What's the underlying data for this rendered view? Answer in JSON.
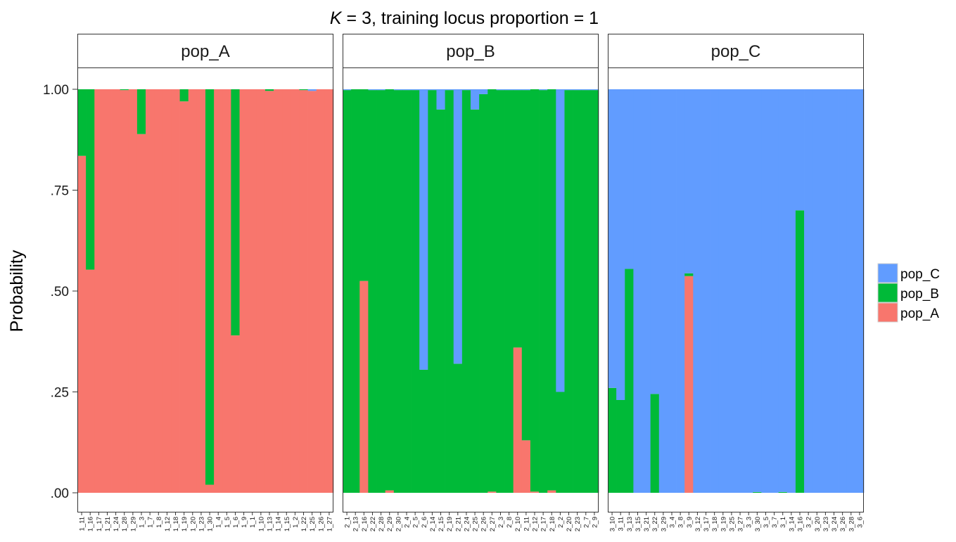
{
  "chart_data": {
    "type": "bar",
    "stacked": true,
    "title_k": "K",
    "title_rest": " = 3, training locus proportion = 1",
    "ylabel": "Probability",
    "xlabel": "",
    "ylim": [
      0,
      1
    ],
    "y_ticks": [
      0,
      0.25,
      0.5,
      0.75,
      1
    ],
    "y_tick_labels": [
      ".00",
      ".25",
      ".50",
      ".75",
      "1.00"
    ],
    "grid": false,
    "legend_position": "right",
    "legend": [
      {
        "label": "pop_C",
        "color": "#619CFF"
      },
      {
        "label": "pop_B",
        "color": "#00BA38"
      },
      {
        "label": "pop_A",
        "color": "#F8766D"
      }
    ],
    "stack_order": [
      "pop_A",
      "pop_B",
      "pop_C"
    ],
    "facets": [
      {
        "label": "pop_A",
        "samples": [
          "1_11",
          "1_16",
          "1_17",
          "1_21",
          "1_24",
          "1_28",
          "1_29",
          "1_3",
          "1_7",
          "1_8",
          "1_12",
          "1_18",
          "1_19",
          "1_20",
          "1_23",
          "1_30",
          "1_4",
          "1_5",
          "1_6",
          "1_9",
          "1_1",
          "1_10",
          "1_13",
          "1_14",
          "1_15",
          "1_2",
          "1_22",
          "1_25",
          "1_26",
          "1_27"
        ],
        "series": [
          {
            "name": "pop_A",
            "values": [
              0.835,
              0.553,
              1.0,
              1.0,
              1.0,
              0.998,
              1.0,
              0.889,
              1.0,
              1.0,
              1.0,
              1.0,
              0.97,
              1.0,
              1.0,
              0.02,
              1.0,
              1.0,
              0.39,
              1.0,
              1.0,
              1.0,
              0.996,
              1.0,
              1.0,
              1.0,
              0.998,
              0.996,
              1.0,
              1.0
            ]
          },
          {
            "name": "pop_B",
            "values": [
              0.165,
              0.447,
              0.0,
              0.0,
              0.0,
              0.002,
              0.0,
              0.111,
              0.0,
              0.0,
              0.0,
              0.0,
              0.03,
              0.0,
              0.0,
              0.98,
              0.0,
              0.0,
              0.61,
              0.0,
              0.0,
              0.0,
              0.004,
              0.0,
              0.0,
              0.0,
              0.002,
              0.0,
              0.0,
              0.0
            ]
          },
          {
            "name": "pop_C",
            "values": [
              0,
              0,
              0,
              0,
              0,
              0,
              0,
              0,
              0,
              0,
              0,
              0,
              0,
              0,
              0,
              0,
              0,
              0,
              0,
              0,
              0,
              0,
              0,
              0,
              0,
              0,
              0,
              0.004,
              0,
              0
            ]
          }
        ]
      },
      {
        "label": "pop_B",
        "samples": [
          "2_1",
          "2_13",
          "2_16",
          "2_22",
          "2_28",
          "2_29",
          "2_30",
          "2_4",
          "2_5",
          "2_6",
          "2_14",
          "2_15",
          "2_19",
          "2_21",
          "2_24",
          "2_25",
          "2_26",
          "2_27",
          "2_3",
          "2_8",
          "2_10",
          "2_11",
          "2_12",
          "2_17",
          "2_18",
          "2_2",
          "2_20",
          "2_23",
          "2_7",
          "2_9"
        ],
        "series": [
          {
            "name": "pop_A",
            "values": [
              0,
              0,
              0.525,
              0,
              0,
              0.006,
              0,
              0,
              0,
              0,
              0,
              0,
              0,
              0,
              0,
              0,
              0,
              0.003,
              0,
              0,
              0.36,
              0.13,
              0.003,
              0,
              0.006,
              0,
              0,
              0,
              0,
              0
            ]
          },
          {
            "name": "pop_B",
            "values": [
              0.998,
              1.0,
              0.475,
              0.998,
              0.998,
              0.994,
              0.998,
              0.998,
              0.998,
              0.305,
              0.998,
              0.95,
              0.998,
              0.32,
              0.998,
              0.95,
              0.988,
              0.997,
              0.998,
              0.998,
              0.638,
              0.868,
              0.997,
              0.998,
              0.994,
              0.25,
              0.998,
              0.998,
              0.998,
              0.998
            ]
          },
          {
            "name": "pop_C",
            "values": [
              0.002,
              0,
              0,
              0.002,
              0.002,
              0,
              0.002,
              0.002,
              0.002,
              0.695,
              0.002,
              0.05,
              0.002,
              0.68,
              0.002,
              0.05,
              0.012,
              0,
              0.002,
              0.002,
              0.002,
              0.002,
              0,
              0.002,
              0,
              0.75,
              0.002,
              0.002,
              0.002,
              0.002
            ]
          }
        ]
      },
      {
        "label": "pop_C",
        "samples": [
          "3_10",
          "3_11",
          "3_13",
          "3_15",
          "3_21",
          "3_22",
          "3_29",
          "3_4",
          "3_8",
          "3_9",
          "3_12",
          "3_17",
          "3_18",
          "3_19",
          "3_25",
          "3_27",
          "3_3",
          "3_30",
          "3_5",
          "3_7",
          "3_1",
          "3_14",
          "3_16",
          "3_2",
          "3_20",
          "3_23",
          "3_24",
          "3_26",
          "3_28",
          "3_6"
        ],
        "series": [
          {
            "name": "pop_A",
            "values": [
              0,
              0,
              0,
              0,
              0,
              0,
              0,
              0,
              0,
              0.537,
              0,
              0,
              0,
              0,
              0,
              0,
              0,
              0,
              0,
              0,
              0,
              0,
              0,
              0,
              0,
              0,
              0,
              0,
              0,
              0
            ]
          },
          {
            "name": "pop_B",
            "values": [
              0.26,
              0.23,
              0.555,
              0,
              0,
              0.245,
              0,
              0,
              0,
              0.007,
              0,
              0,
              0,
              0,
              0,
              0,
              0,
              0.002,
              0,
              0,
              0.002,
              0,
              0.7,
              0,
              0,
              0,
              0,
              0,
              0,
              0
            ]
          },
          {
            "name": "pop_C",
            "values": [
              0.74,
              0.77,
              0.445,
              1.0,
              1.0,
              0.755,
              1.0,
              1.0,
              1.0,
              0.456,
              1.0,
              1.0,
              1.0,
              1.0,
              1.0,
              1.0,
              1.0,
              0.998,
              1.0,
              1.0,
              0.998,
              1.0,
              0.3,
              1.0,
              1.0,
              1.0,
              1.0,
              1.0,
              1.0,
              1.0
            ]
          }
        ]
      }
    ]
  }
}
